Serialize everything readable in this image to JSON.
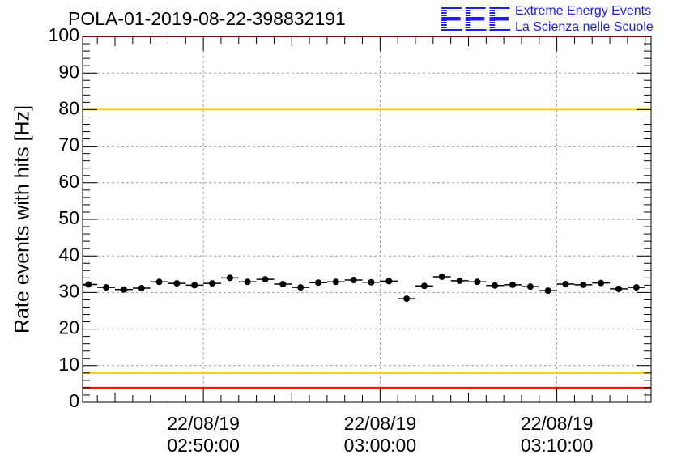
{
  "header": {
    "title": "POLA-01-2019-08-22-398832191"
  },
  "logo": {
    "mark": "EEE",
    "line1": "Extreme Energy Events",
    "line2": "La Scienza nelle Scuole",
    "color": "#1e1ef0"
  },
  "chart_data": {
    "type": "scatter",
    "title": "POLA-01-2019-08-22-398832191",
    "xlabel": "",
    "ylabel": "Rate events with hits [Hz]",
    "ylim": [
      0,
      100
    ],
    "y_ticks": [
      0,
      10,
      20,
      30,
      40,
      50,
      60,
      70,
      80,
      90,
      100
    ],
    "x_tick_labels": [
      {
        "date": "22/08/19",
        "time": "02:50:00"
      },
      {
        "date": "22/08/19",
        "time": "03:00:00"
      },
      {
        "date": "22/08/19",
        "time": "03:10:00"
      }
    ],
    "xlim": [
      "02:43:10",
      "03:15:20"
    ],
    "grid": true,
    "series": [
      {
        "marker": "circle with horizontal error bars",
        "color": "#000000",
        "x": [
          "02:43:30",
          "02:44:30",
          "02:45:30",
          "02:46:30",
          "02:47:30",
          "02:48:30",
          "02:49:30",
          "02:50:30",
          "02:51:30",
          "02:52:30",
          "02:53:30",
          "02:54:30",
          "02:55:30",
          "02:56:30",
          "02:57:30",
          "02:58:30",
          "02:59:30",
          "03:00:30",
          "03:01:30",
          "03:02:30",
          "03:03:30",
          "03:04:30",
          "03:05:30",
          "03:06:30",
          "03:07:30",
          "03:08:30",
          "03:09:30",
          "03:10:30",
          "03:11:30",
          "03:12:30",
          "03:13:30",
          "03:14:30"
        ],
        "values": [
          32.2,
          31.4,
          30.8,
          31.2,
          32.9,
          32.5,
          32.0,
          32.5,
          34.0,
          32.9,
          33.6,
          32.3,
          31.4,
          32.7,
          32.9,
          33.4,
          32.8,
          33.1,
          28.3,
          31.8,
          34.3,
          33.2,
          32.9,
          31.9,
          32.1,
          31.6,
          30.5,
          32.3,
          32.1,
          32.6,
          31.0,
          31.4
        ]
      }
    ],
    "reference_lines": [
      {
        "y": 100,
        "color": "#ff0000"
      },
      {
        "y": 80,
        "color": "#ffcc00"
      },
      {
        "y": 8,
        "color": "#ffcc00"
      },
      {
        "y": 4,
        "color": "#ff0000"
      }
    ]
  }
}
